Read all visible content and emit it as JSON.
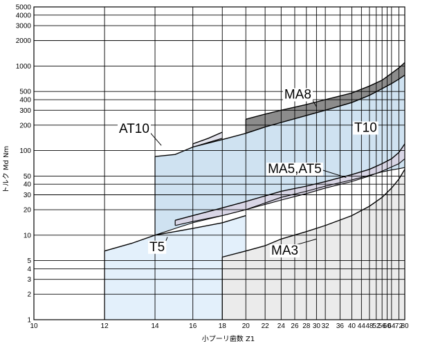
{
  "chart_data": {
    "type": "area",
    "xlabel": "小プーリ歯数 Z1",
    "ylabel": "トルク Md Nm",
    "x_scale": "reciprocal",
    "y_scale": "log",
    "xlim": [
      10,
      80
    ],
    "ylim": [
      1,
      5000
    ],
    "grid": true,
    "x_ticks": [
      10,
      12,
      14,
      16,
      18,
      20,
      22,
      24,
      26,
      28,
      30,
      32,
      36,
      40,
      44,
      48,
      52,
      56,
      60,
      64,
      72,
      80
    ],
    "x_tick_labels": [
      "10",
      "12",
      "14",
      "16",
      "18",
      "20",
      "22",
      "24",
      "26",
      "28",
      "30",
      "32",
      "36",
      "40",
      "44",
      "48",
      "52",
      "56",
      "60",
      "64",
      "72",
      "80"
    ],
    "y_ticks": [
      1,
      2,
      3,
      4,
      5,
      10,
      20,
      30,
      40,
      50,
      100,
      200,
      300,
      400,
      500,
      1000,
      2000,
      3000,
      4000,
      5000
    ],
    "y_tick_labels": [
      "1",
      "2",
      "3",
      "4",
      "5",
      "10",
      "20",
      "30",
      "40",
      "50",
      "100",
      "200",
      "300",
      "400",
      "500",
      "1000",
      "2000",
      "3000",
      "4000",
      "5000"
    ],
    "series": [
      {
        "name": "MA8",
        "color": "#8c8c8c",
        "x": [
          20,
          22,
          24,
          28,
          32,
          40,
          48,
          56,
          64,
          72,
          80
        ],
        "upper": [
          235,
          270,
          300,
          350,
          400,
          480,
          580,
          680,
          820,
          950,
          1100
        ],
        "lower": [
          160,
          190,
          215,
          260,
          300,
          370,
          450,
          540,
          620,
          700,
          780
        ]
      },
      {
        "name": "T10",
        "color": "#cfe2f1",
        "x": [
          14,
          15,
          16,
          18,
          20,
          22,
          24,
          28,
          32,
          40,
          48,
          56,
          64,
          72,
          80
        ],
        "upper": [
          85,
          90,
          110,
          135,
          160,
          190,
          215,
          260,
          300,
          370,
          450,
          540,
          620,
          700,
          780
        ],
        "lower": [
          10,
          12,
          14,
          17,
          20,
          24,
          28,
          33,
          38,
          45,
          51,
          56,
          59,
          61,
          63
        ]
      },
      {
        "name": "AT10",
        "color": "#e3e3ec",
        "x": [
          16,
          17,
          18
        ],
        "upper": [
          120,
          140,
          165
        ],
        "lower": [
          110,
          125,
          140
        ]
      },
      {
        "name": "MA5,AT5",
        "color": "#d9d6e6",
        "x": [
          15,
          16,
          18,
          20,
          24,
          28,
          32,
          40,
          48,
          56,
          64,
          72,
          80
        ],
        "upper": [
          15,
          17,
          21,
          25,
          33,
          38,
          43,
          52,
          60,
          70,
          80,
          95,
          120
        ],
        "lower": [
          13,
          14.5,
          17,
          20,
          26,
          31,
          36,
          43,
          50,
          57,
          64,
          70,
          80
        ]
      },
      {
        "name": "T5",
        "color": "#e3f0fb",
        "x": [
          12,
          13,
          14,
          16,
          18,
          20
        ],
        "upper": [
          6.5,
          8,
          10,
          12,
          14,
          17
        ],
        "lower": [
          1,
          1,
          1,
          1,
          1,
          1
        ]
      },
      {
        "name": "MA3",
        "color": "#ebebeb",
        "x": [
          18,
          20,
          22,
          24,
          28,
          32,
          40,
          48,
          56,
          64,
          72,
          80
        ],
        "upper": [
          5.5,
          6.5,
          7.5,
          9,
          11,
          13,
          17,
          22,
          28,
          36,
          46,
          60
        ],
        "lower": [
          1,
          1,
          1,
          1,
          1,
          1,
          1,
          1,
          1,
          1,
          1,
          1
        ]
      }
    ],
    "annotations": [
      "MA8",
      "AT10",
      "T10",
      "MA5,AT5",
      "T5",
      "MA3"
    ]
  }
}
